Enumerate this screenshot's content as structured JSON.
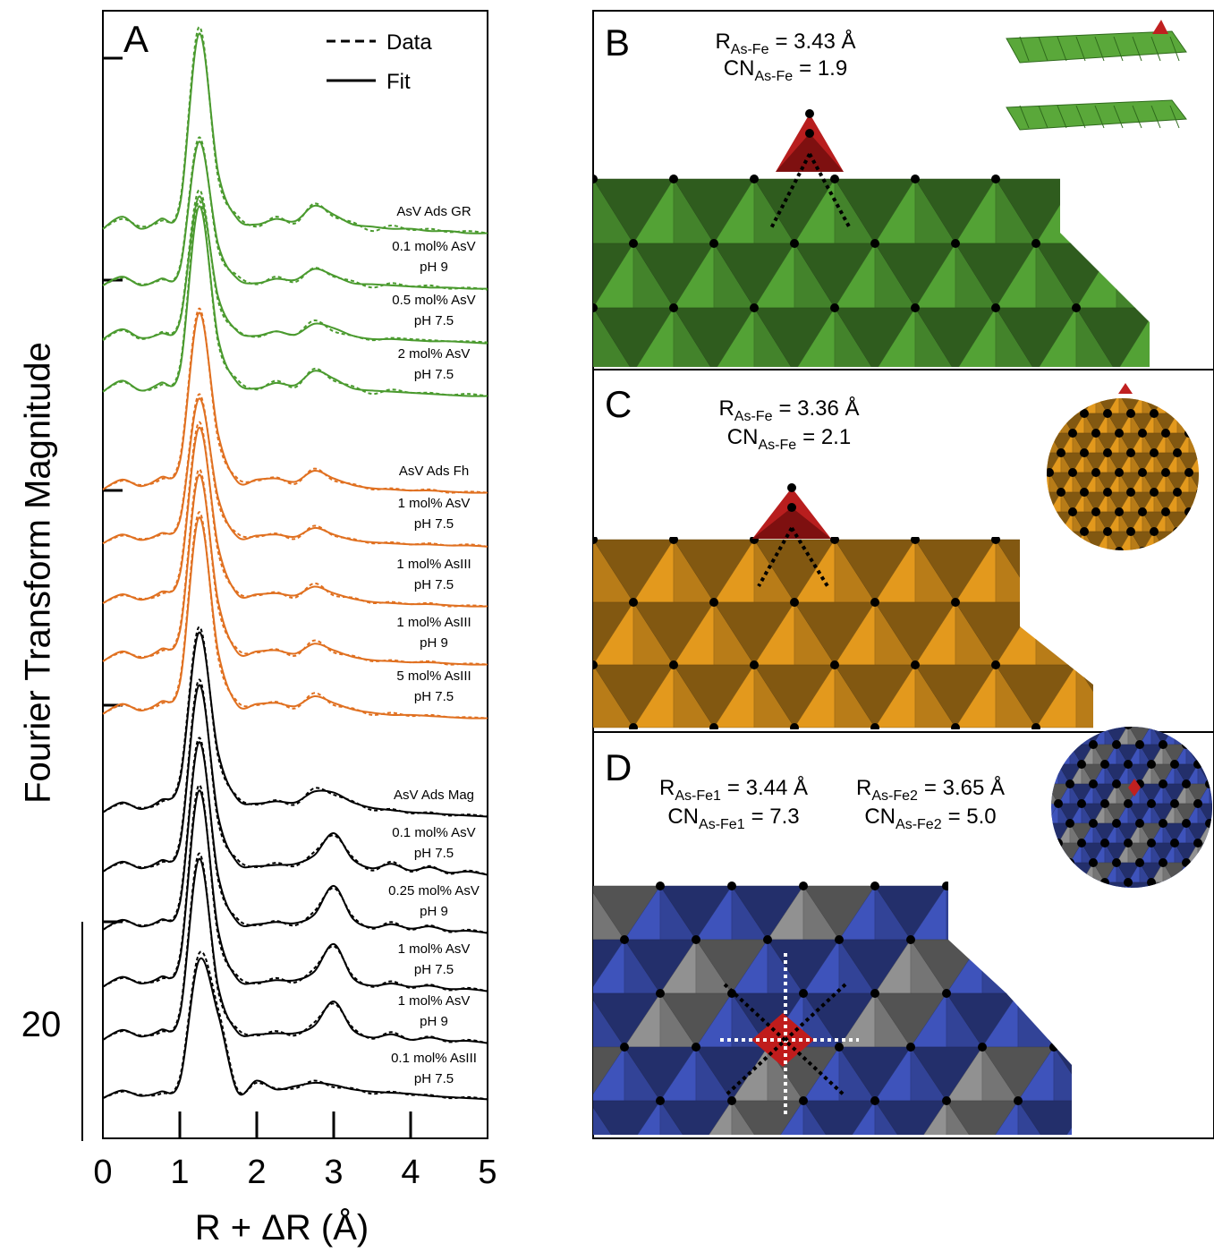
{
  "chart_data": {
    "type": "line",
    "panel_label": "A",
    "ylabel": "Fourier Transform Magnitude",
    "xlabel": "R + ΔR (Å)",
    "xlim": [
      0,
      5
    ],
    "xticks": [
      0,
      1,
      2,
      3,
      4,
      5
    ],
    "scale_bar": 20,
    "legend": {
      "data": "Data",
      "fit": "Fit"
    },
    "x": [
      0,
      0.25,
      0.5,
      0.75,
      1.0,
      1.25,
      1.5,
      1.75,
      2.0,
      2.25,
      2.5,
      2.75,
      3.0,
      3.25,
      3.5,
      3.75,
      4.0,
      4.25,
      4.5,
      4.75,
      5.0
    ],
    "series": [
      {
        "name": [
          "AsV Ads GR"
        ],
        "color": "#4a9a2e",
        "fit": [
          0.6,
          1.7,
          0.6,
          1.5,
          2.7,
          18.4,
          5.7,
          1.5,
          1.0,
          1.5,
          1.3,
          2.7,
          1.9,
          1.0,
          0.8,
          0.6,
          0.6,
          0.4,
          0.4,
          0.2,
          0.2
        ],
        "data": [
          0.6,
          1.5,
          0.8,
          1.3,
          3.0,
          19.0,
          5.2,
          1.8,
          0.8,
          1.7,
          1.1,
          2.9,
          1.7,
          1.2,
          0.4,
          0.9,
          0.5,
          0.6,
          0.3,
          0.4,
          0.2
        ]
      },
      {
        "name": [
          "0.1 mol% AsV",
          "pH 9"
        ],
        "color": "#4a9a2e",
        "fit": [
          0.5,
          1.3,
          0.5,
          1.1,
          2.0,
          13.6,
          4.2,
          1.1,
          0.7,
          1.1,
          1.0,
          2.0,
          1.4,
          0.7,
          0.6,
          0.5,
          0.4,
          0.3,
          0.3,
          0.2,
          0.2
        ],
        "data": [
          0.5,
          1.2,
          0.6,
          1.0,
          2.2,
          14.0,
          3.8,
          1.4,
          0.6,
          1.3,
          0.8,
          2.1,
          1.3,
          0.9,
          0.3,
          0.7,
          0.4,
          0.5,
          0.2,
          0.3,
          0.1
        ]
      },
      {
        "name": [
          "0.5 mol% AsV",
          "pH 7.5"
        ],
        "color": "#4a9a2e",
        "fit": [
          0.5,
          1.4,
          0.6,
          1.0,
          2.1,
          13.5,
          4.3,
          1.2,
          0.8,
          1.2,
          0.9,
          1.9,
          1.5,
          0.8,
          0.5,
          0.5,
          0.4,
          0.3,
          0.3,
          0.2,
          0.1
        ],
        "data": [
          0.4,
          1.3,
          0.5,
          1.1,
          2.3,
          14.1,
          3.9,
          1.3,
          0.7,
          1.2,
          0.9,
          2.2,
          1.2,
          0.8,
          0.4,
          0.6,
          0.5,
          0.4,
          0.3,
          0.3,
          0.2
        ]
      },
      {
        "name": [
          "2 mol% AsV",
          "pH 7.5"
        ],
        "color": "#4a9a2e",
        "fit": [
          0.6,
          1.6,
          0.7,
          1.4,
          2.6,
          17.5,
          5.4,
          1.4,
          0.9,
          1.4,
          1.2,
          2.5,
          1.8,
          0.9,
          0.7,
          0.6,
          0.5,
          0.4,
          0.3,
          0.2,
          0.2
        ],
        "data": [
          0.6,
          1.5,
          0.7,
          1.2,
          2.9,
          18.0,
          5.0,
          1.7,
          0.8,
          1.6,
          1.0,
          2.7,
          1.6,
          1.1,
          0.4,
          0.8,
          0.5,
          0.5,
          0.3,
          0.4,
          0.2
        ]
      },
      {
        "name": [
          "AsV Ads Fh"
        ],
        "color": "#e07020",
        "fit": [
          0.5,
          1.4,
          0.8,
          1.6,
          3.0,
          16.6,
          5.5,
          1.2,
          1.4,
          1.5,
          1.2,
          2.2,
          1.5,
          0.9,
          0.6,
          0.5,
          0.4,
          0.4,
          0.3,
          0.2,
          0.2
        ],
        "data": [
          0.5,
          1.3,
          0.9,
          1.4,
          3.3,
          17.0,
          5.0,
          1.5,
          1.3,
          1.6,
          1.0,
          2.4,
          1.3,
          1.0,
          0.5,
          0.6,
          0.4,
          0.5,
          0.2,
          0.3,
          0.2
        ]
      },
      {
        "name": [
          "1 mol% AsV",
          "pH 7.5"
        ],
        "color": "#e07020",
        "fit": [
          0.4,
          1.2,
          0.7,
          1.3,
          2.5,
          13.6,
          4.5,
          1.0,
          1.1,
          1.2,
          1.0,
          1.8,
          1.2,
          0.7,
          0.5,
          0.4,
          0.3,
          0.3,
          0.2,
          0.2,
          0.1
        ],
        "data": [
          0.4,
          1.1,
          0.8,
          1.2,
          2.7,
          14.0,
          4.1,
          1.3,
          1.0,
          1.3,
          0.8,
          2.0,
          1.1,
          0.8,
          0.4,
          0.5,
          0.3,
          0.4,
          0.2,
          0.3,
          0.1
        ]
      },
      {
        "name": [
          "1 mol% AsIII",
          "pH 7.5"
        ],
        "color": "#e07020",
        "fit": [
          0.5,
          1.3,
          0.8,
          1.5,
          3.1,
          16.5,
          5.6,
          1.3,
          1.3,
          1.4,
          1.2,
          2.0,
          1.4,
          0.9,
          0.6,
          0.5,
          0.4,
          0.4,
          0.3,
          0.2,
          0.2
        ],
        "data": [
          0.5,
          1.2,
          0.9,
          1.3,
          3.4,
          17.0,
          5.1,
          1.5,
          1.2,
          1.5,
          1.0,
          2.3,
          1.2,
          1.0,
          0.5,
          0.6,
          0.4,
          0.5,
          0.2,
          0.3,
          0.2
        ]
      },
      {
        "name": [
          "1 mol% AsIII",
          "pH 9"
        ],
        "color": "#e07020",
        "fit": [
          0.5,
          1.4,
          0.8,
          1.6,
          3.2,
          17.5,
          5.9,
          1.3,
          1.4,
          1.5,
          1.2,
          2.1,
          1.5,
          0.9,
          0.6,
          0.5,
          0.4,
          0.4,
          0.3,
          0.2,
          0.2
        ],
        "data": [
          0.5,
          1.3,
          0.9,
          1.4,
          3.5,
          18.0,
          5.4,
          1.6,
          1.3,
          1.6,
          1.0,
          2.4,
          1.3,
          1.0,
          0.5,
          0.6,
          0.4,
          0.5,
          0.2,
          0.3,
          0.2
        ]
      },
      {
        "name": [
          "5 mol% AsIII",
          "pH 7.5"
        ],
        "color": "#e07020",
        "fit": [
          0.6,
          1.5,
          0.9,
          1.7,
          3.4,
          18.5,
          6.2,
          1.4,
          1.5,
          1.6,
          1.3,
          2.2,
          1.6,
          1.0,
          0.7,
          0.5,
          0.5,
          0.4,
          0.3,
          0.2,
          0.2
        ],
        "data": [
          0.6,
          1.4,
          1.0,
          1.5,
          3.7,
          19.0,
          5.7,
          1.7,
          1.4,
          1.7,
          1.1,
          2.5,
          1.4,
          1.1,
          0.5,
          0.7,
          0.4,
          0.5,
          0.3,
          0.3,
          0.2
        ]
      },
      {
        "name": [
          "AsV Ads Mag"
        ],
        "color": "#000000",
        "fit": [
          0.6,
          1.5,
          0.9,
          1.7,
          3.5,
          17.0,
          6.0,
          1.8,
          1.4,
          1.6,
          1.5,
          2.5,
          2.4,
          1.5,
          1.0,
          0.8,
          0.6,
          0.5,
          0.4,
          0.3,
          0.2
        ],
        "data": [
          0.6,
          1.4,
          1.0,
          1.5,
          3.8,
          17.5,
          5.6,
          2.0,
          1.3,
          1.7,
          1.3,
          2.8,
          2.2,
          1.6,
          0.8,
          0.9,
          0.5,
          0.6,
          0.3,
          0.4,
          0.2
        ]
      },
      {
        "name": [
          "0.1 mol% AsV",
          "pH 7.5"
        ],
        "color": "#000000",
        "fit": [
          0.5,
          1.4,
          0.8,
          1.5,
          3.0,
          17.5,
          5.5,
          1.3,
          1.0,
          1.1,
          1.2,
          2.0,
          4.0,
          1.6,
          0.8,
          1.2,
          0.6,
          0.9,
          0.4,
          0.5,
          0.2
        ],
        "data": [
          0.5,
          1.3,
          0.9,
          1.3,
          3.3,
          18.0,
          5.0,
          1.6,
          0.9,
          1.3,
          1.0,
          2.3,
          3.8,
          1.8,
          0.6,
          1.4,
          0.5,
          1.0,
          0.3,
          0.6,
          0.2
        ]
      },
      {
        "name": [
          "0.25 mol% AsV",
          "pH 9"
        ],
        "color": "#000000",
        "fit": [
          0.5,
          1.4,
          0.8,
          1.4,
          2.9,
          17.6,
          5.4,
          1.2,
          1.0,
          1.2,
          1.1,
          1.9,
          4.5,
          1.5,
          0.7,
          1.0,
          0.6,
          0.8,
          0.4,
          0.4,
          0.2
        ],
        "data": [
          0.5,
          1.3,
          0.9,
          1.3,
          3.2,
          18.0,
          5.0,
          1.5,
          0.9,
          1.3,
          0.9,
          2.2,
          4.3,
          1.7,
          0.6,
          1.2,
          0.5,
          0.9,
          0.3,
          0.5,
          0.2
        ]
      },
      {
        "name": [
          "1 mol% AsV",
          "pH 7.5"
        ],
        "color": "#000000",
        "fit": [
          0.6,
          1.5,
          0.9,
          1.5,
          3.1,
          18.5,
          5.7,
          1.3,
          1.0,
          1.2,
          1.2,
          2.0,
          4.5,
          1.4,
          0.7,
          0.9,
          0.6,
          0.7,
          0.4,
          0.4,
          0.2
        ],
        "data": [
          0.6,
          1.4,
          1.0,
          1.3,
          3.4,
          19.0,
          5.2,
          1.6,
          0.9,
          1.4,
          1.0,
          2.3,
          4.3,
          1.6,
          0.6,
          1.1,
          0.5,
          0.8,
          0.3,
          0.5,
          0.2
        ]
      },
      {
        "name": [
          "1 mol% AsV",
          "pH 9"
        ],
        "color": "#000000",
        "fit": [
          0.5,
          1.4,
          0.8,
          1.4,
          2.8,
          17.0,
          5.3,
          1.2,
          1.0,
          1.1,
          1.1,
          1.8,
          4.0,
          1.4,
          0.7,
          1.0,
          0.5,
          0.7,
          0.4,
          0.4,
          0.2
        ],
        "data": [
          0.5,
          1.3,
          0.9,
          1.2,
          3.1,
          17.5,
          4.9,
          1.5,
          0.9,
          1.3,
          0.9,
          2.1,
          3.8,
          1.6,
          0.6,
          1.2,
          0.5,
          0.8,
          0.3,
          0.5,
          0.2
        ]
      },
      {
        "name": [
          "0.1 mol% AsIII",
          "pH 7.5"
        ],
        "color": "#000000",
        "fit": [
          0.4,
          1.1,
          0.6,
          1.0,
          2.0,
          13.0,
          8.0,
          1.0,
          2.0,
          1.2,
          1.5,
          1.8,
          1.6,
          1.2,
          1.0,
          0.9,
          0.8,
          0.6,
          0.5,
          0.4,
          0.3
        ],
        "data": [
          0.4,
          1.0,
          0.7,
          0.8,
          2.3,
          13.6,
          8.5,
          1.2,
          1.8,
          1.3,
          1.3,
          2.0,
          1.4,
          1.3,
          0.8,
          1.0,
          0.7,
          0.7,
          0.4,
          0.5,
          0.3
        ]
      }
    ]
  },
  "panels": [
    {
      "label": "B",
      "annotations": [
        {
          "symbol": "R",
          "subscript": "As-Fe",
          "text": "= 3.43 Å"
        },
        {
          "symbol": "CN",
          "subscript": "As-Fe",
          "text": "= 1.9"
        }
      ]
    },
    {
      "label": "C",
      "annotations": [
        {
          "symbol": "R",
          "subscript": "As-Fe",
          "text": "= 3.36 Å"
        },
        {
          "symbol": "CN",
          "subscript": "As-Fe",
          "text": "= 2.1"
        }
      ]
    },
    {
      "label": "D",
      "annotations": [
        {
          "symbol": "R",
          "subscript": "As-Fe1",
          "text": "= 3.44 Å"
        },
        {
          "symbol": "CN",
          "subscript": "As-Fe1",
          "text": "= 7.3"
        },
        {
          "symbol": "R",
          "subscript": "As-Fe2",
          "text": "= 3.65 Å"
        },
        {
          "symbol": "CN",
          "subscript": "As-Fe2",
          "text": "= 5.0"
        }
      ]
    }
  ]
}
